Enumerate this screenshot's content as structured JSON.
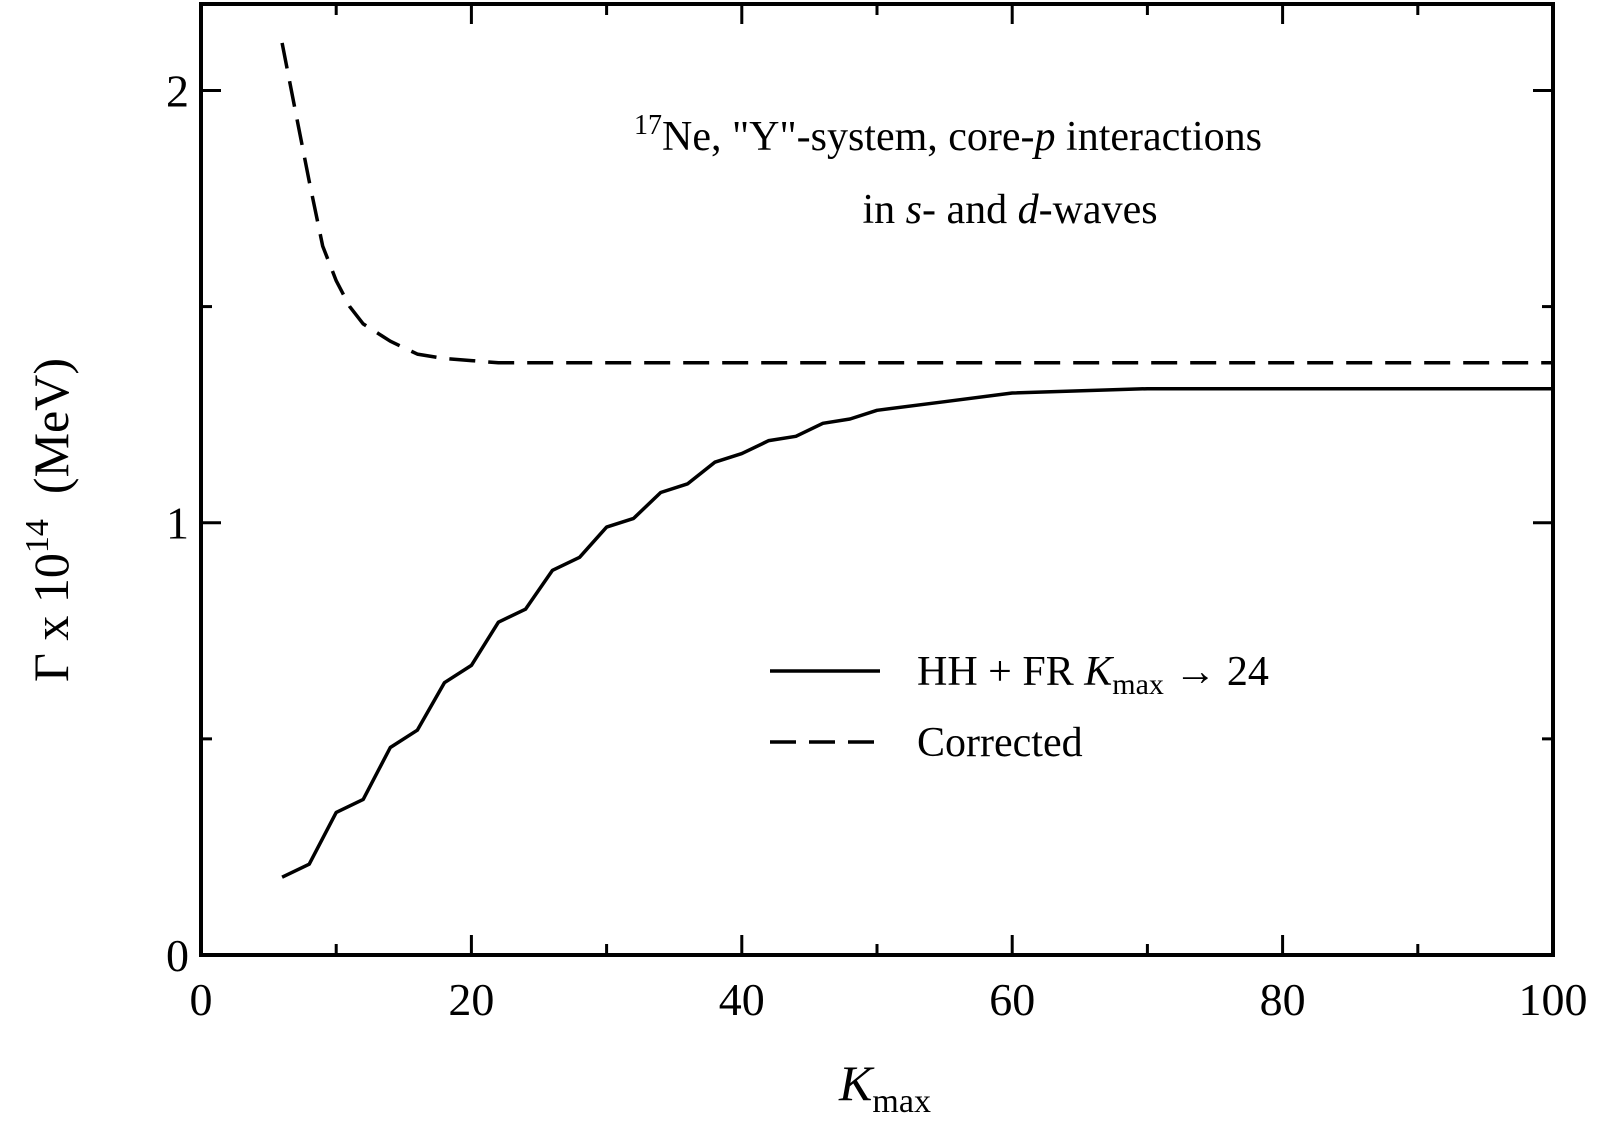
{
  "chart_data": {
    "type": "line",
    "annotation": {
      "line1": {
        "sup": "17",
        "a": "Ne, \"Y\"-system, core-",
        "b": "p",
        "c": " interactions"
      },
      "line2": {
        "a": "in ",
        "b": "s",
        "c": "- and ",
        "d": "d",
        "e": "-waves"
      }
    },
    "xlabel": {
      "main": "K",
      "sub": "max"
    },
    "ylabel": {
      "a": "Γ x 10",
      "sup": "14",
      "b": "  (MeV)"
    },
    "xlim": [
      0,
      100
    ],
    "ylim": [
      0,
      2.2
    ],
    "x_ticks": [
      0,
      20,
      40,
      60,
      80,
      100
    ],
    "x_tick_labels": [
      "0",
      "20",
      "40",
      "60",
      "80",
      "100"
    ],
    "x_minor_ticks": [
      10,
      30,
      50,
      70,
      90
    ],
    "y_ticks": [
      0,
      1,
      2
    ],
    "y_tick_labels": [
      "0",
      "1",
      "2"
    ],
    "y_minor_ticks": [
      0.5,
      1.5
    ],
    "legend": {
      "position": "center-right",
      "entries": [
        {
          "style": "solid",
          "label_a": "HH + FR  ",
          "label_k": "K",
          "label_sub": "max",
          "label_b": "  → 24"
        },
        {
          "style": "dashed",
          "label_a": "Corrected"
        }
      ]
    },
    "series": [
      {
        "style": "solid",
        "x": [
          6,
          8,
          10,
          12,
          14,
          16,
          18,
          20,
          22,
          24,
          26,
          28,
          30,
          32,
          34,
          36,
          38,
          40,
          42,
          44,
          46,
          48,
          50,
          55,
          60,
          70,
          80,
          90,
          100
        ],
        "y": [
          0.18,
          0.21,
          0.33,
          0.36,
          0.48,
          0.52,
          0.63,
          0.67,
          0.77,
          0.8,
          0.89,
          0.92,
          0.99,
          1.01,
          1.07,
          1.09,
          1.14,
          1.16,
          1.19,
          1.2,
          1.23,
          1.24,
          1.26,
          1.28,
          1.3,
          1.31,
          1.31,
          1.31,
          1.31
        ]
      },
      {
        "style": "dashed",
        "x": [
          6,
          7,
          8,
          9,
          10,
          11,
          12,
          14,
          16,
          18,
          20,
          22,
          25,
          30,
          40,
          50,
          60,
          70,
          80,
          90,
          100
        ],
        "y": [
          2.11,
          1.95,
          1.79,
          1.64,
          1.56,
          1.5,
          1.46,
          1.42,
          1.39,
          1.38,
          1.375,
          1.37,
          1.37,
          1.37,
          1.37,
          1.37,
          1.37,
          1.37,
          1.37,
          1.37,
          1.37
        ]
      }
    ]
  }
}
